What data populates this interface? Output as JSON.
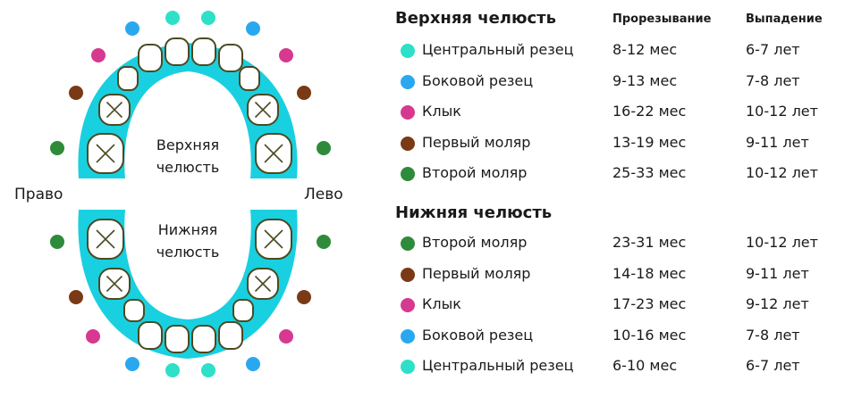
{
  "colors": {
    "central_incisor": "#2ee0c8",
    "lateral_incisor": "#2aa8ef",
    "canine": "#d6398f",
    "first_molar": "#7a3a16",
    "second_molar": "#2e8b3a",
    "gum": "#19d0e0",
    "tooth_outline": "#4a4a22"
  },
  "diagram": {
    "right_label": "Право",
    "left_label": "Лево",
    "upper_jaw_line1": "Верхняя",
    "upper_jaw_line2": "челюсть",
    "lower_jaw_line1": "Нижняя",
    "lower_jaw_line2": "челюсть"
  },
  "table": {
    "col_eruption": "Прорезывание",
    "col_loss": "Выпадение",
    "upper": {
      "title": "Верхняя челюсть",
      "rows": [
        {
          "tooth": "Центральный резец",
          "eruption": "8-12 мес",
          "loss": "6-7 лет",
          "color": "central_incisor"
        },
        {
          "tooth": "Боковой резец",
          "eruption": "9-13 мес",
          "loss": "7-8 лет",
          "color": "lateral_incisor"
        },
        {
          "tooth": "Клык",
          "eruption": "16-22 мес",
          "loss": "10-12 лет",
          "color": "canine"
        },
        {
          "tooth": "Первый моляр",
          "eruption": "13-19 мес",
          "loss": "9-11 лет",
          "color": "first_molar"
        },
        {
          "tooth": "Второй моляр",
          "eruption": "25-33 мес",
          "loss": "10-12 лет",
          "color": "second_molar"
        }
      ]
    },
    "lower": {
      "title": "Нижняя челюсть",
      "rows": [
        {
          "tooth": "Второй моляр",
          "eruption": "23-31 мес",
          "loss": "10-12 лет",
          "color": "second_molar"
        },
        {
          "tooth": "Первый моляр",
          "eruption": "14-18 мес",
          "loss": "9-11 лет",
          "color": "first_molar"
        },
        {
          "tooth": "Клык",
          "eruption": "17-23 мес",
          "loss": "9-12 лет",
          "color": "canine"
        },
        {
          "tooth": "Боковой резец",
          "eruption": "10-16 мес",
          "loss": "7-8 лет",
          "color": "lateral_incisor"
        },
        {
          "tooth": "Центральный резец",
          "eruption": "6-10 мес",
          "loss": "6-7 лет",
          "color": "central_incisor"
        }
      ]
    }
  }
}
